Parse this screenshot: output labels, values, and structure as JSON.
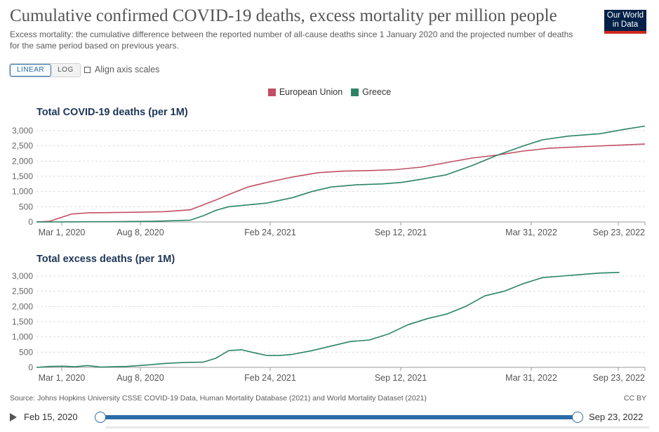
{
  "header": {
    "title": "Cumulative confirmed COVID-19 deaths, excess mortality per million people",
    "subtitle": "Excess mortality: the cumulative difference between the reported number of all-cause deaths since 1 January 2020 and the projected number of deaths for the same period based on previous years.",
    "logo_line1": "Our World",
    "logo_line2": "in Data"
  },
  "controls": {
    "linear_label": "LINEAR",
    "log_label": "LOG",
    "align_label": "Align axis scales"
  },
  "legend": [
    {
      "name": "European Union",
      "color": "#c15065"
    },
    {
      "name": "Greece",
      "color": "#2c8465"
    }
  ],
  "chart_data": [
    {
      "type": "line",
      "title": "Total COVID-19 deaths (per 1M)",
      "x_ticks": [
        "Mar 1, 2020",
        "Aug 8, 2020",
        "Feb 24, 2021",
        "Sep 12, 2021",
        "Mar 31, 2022",
        "Sep 23, 2022"
      ],
      "x_range": [
        "2020-02-15",
        "2022-09-23"
      ],
      "y_ticks": [
        "0",
        "500",
        "1,000",
        "1,500",
        "2,000",
        "2,500",
        "3,000"
      ],
      "ylim": [
        0,
        3000
      ],
      "series": [
        {
          "name": "European Union",
          "color": "#c15065",
          "x": [
            0,
            20,
            40,
            55,
            80,
            120,
            160,
            200,
            240,
            260,
            280,
            300,
            330,
            360,
            400,
            440,
            480,
            520,
            560,
            600,
            640,
            680,
            720,
            760,
            800,
            860,
            950
          ],
          "values": [
            0,
            20,
            160,
            260,
            300,
            310,
            320,
            340,
            400,
            560,
            720,
            900,
            1150,
            1300,
            1480,
            1620,
            1670,
            1690,
            1720,
            1800,
            1950,
            2100,
            2200,
            2330,
            2420,
            2480,
            2560
          ]
        },
        {
          "name": "Greece",
          "color": "#2c8465",
          "x": [
            0,
            60,
            120,
            180,
            240,
            260,
            280,
            300,
            330,
            360,
            400,
            430,
            460,
            500,
            540,
            570,
            600,
            640,
            680,
            720,
            760,
            790,
            830,
            880,
            920,
            950
          ],
          "values": [
            0,
            5,
            10,
            20,
            60,
            200,
            380,
            500,
            560,
            620,
            800,
            1000,
            1150,
            1220,
            1250,
            1300,
            1400,
            1550,
            1850,
            2200,
            2500,
            2700,
            2820,
            2900,
            3050,
            3150
          ]
        }
      ]
    },
    {
      "type": "line",
      "title": "Total excess deaths (per 1M)",
      "x_ticks": [
        "Mar 1, 2020",
        "Aug 8, 2020",
        "Feb 24, 2021",
        "Sep 12, 2021",
        "Mar 31, 2022",
        "Sep 23, 2022"
      ],
      "x_range": [
        "2020-02-15",
        "2022-09-23"
      ],
      "y_ticks": [
        "0",
        "500",
        "1,000",
        "1,500",
        "2,000",
        "2,500",
        "3,000"
      ],
      "ylim": [
        0,
        3000
      ],
      "series": [
        {
          "name": "Greece",
          "color": "#2c8465",
          "x": [
            0,
            20,
            40,
            60,
            80,
            100,
            120,
            140,
            160,
            180,
            200,
            230,
            260,
            280,
            300,
            320,
            340,
            360,
            380,
            400,
            430,
            460,
            490,
            520,
            550,
            580,
            610,
            640,
            670,
            700,
            730,
            760,
            790,
            820,
            850,
            880,
            910
          ],
          "values": [
            0,
            30,
            40,
            20,
            60,
            10,
            20,
            30,
            60,
            90,
            130,
            160,
            170,
            300,
            550,
            580,
            480,
            390,
            390,
            430,
            550,
            700,
            850,
            900,
            1100,
            1400,
            1600,
            1750,
            2000,
            2350,
            2500,
            2750,
            2950,
            3000,
            3050,
            3100,
            3120
          ]
        }
      ]
    }
  ],
  "footer": {
    "source": "Source: Johns Hopkins University CSSE COVID-19 Data, Human Mortality Database (2021) and World Mortality Dataset (2021)",
    "license": "CC BY"
  },
  "timeline": {
    "start": "Feb 15, 2020",
    "end": "Sep 23, 2022"
  }
}
